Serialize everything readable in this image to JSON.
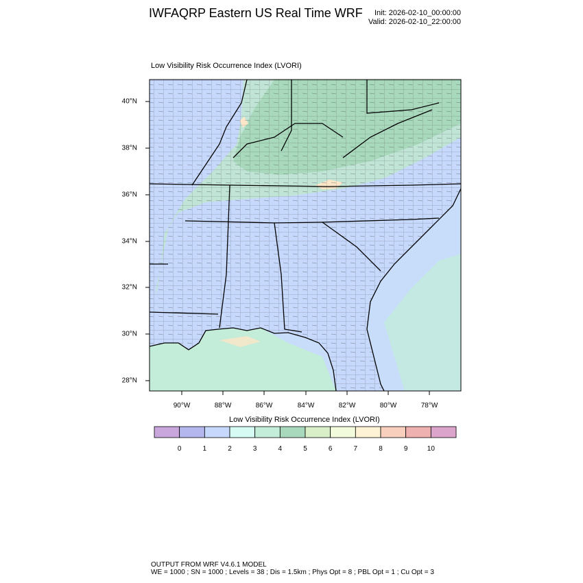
{
  "header": {
    "title": "IWFAQRP Eastern US Real Time WRF",
    "init": "Init: 2026-02-10_00:00:00",
    "valid": "Valid: 2026-02-10_22:00:00"
  },
  "map": {
    "title": "Low Visibility Risk Occurrence Index   (LVORI)",
    "lat_labels": [
      "40°N",
      "38°N",
      "36°N",
      "34°N",
      "32°N",
      "30°N",
      "28°N"
    ],
    "lon_labels": [
      "90°W",
      "88°W",
      "86°W",
      "84°W",
      "82°W",
      "80°W",
      "78°W"
    ],
    "colors": {
      "land_low": "#c6d8fb",
      "land_mid": "#bfe6d2",
      "land_high": "#a9d9bd",
      "ocean": "#c8ddfa",
      "coastal": "#c3ecd9",
      "warm": "#fde6c7"
    }
  },
  "colorbar": {
    "title": "Low Visibility Risk Occurrence Index  (LVORI)",
    "colors": [
      "#c9a6dc",
      "#b3b7ee",
      "#c6d8fb",
      "#d6fbf3",
      "#c3ecd9",
      "#a9d9bd",
      "#d8efc8",
      "#f2fcdd",
      "#fff3d6",
      "#f8cfbd",
      "#efb1b0",
      "#dba4ca"
    ],
    "labels": [
      "0",
      "1",
      "2",
      "3",
      "4",
      "5",
      "6",
      "7",
      "8",
      "9",
      "10"
    ]
  },
  "footer": {
    "line1": "OUTPUT FROM WRF V4.6.1 MODEL",
    "line2": "WE = 1000 ; SN = 1000 ; Levels = 38 ; Dis = 1.5km ; Phys Opt = 8 ; PBL Opt = 1 ; Cu Opt = 3"
  }
}
